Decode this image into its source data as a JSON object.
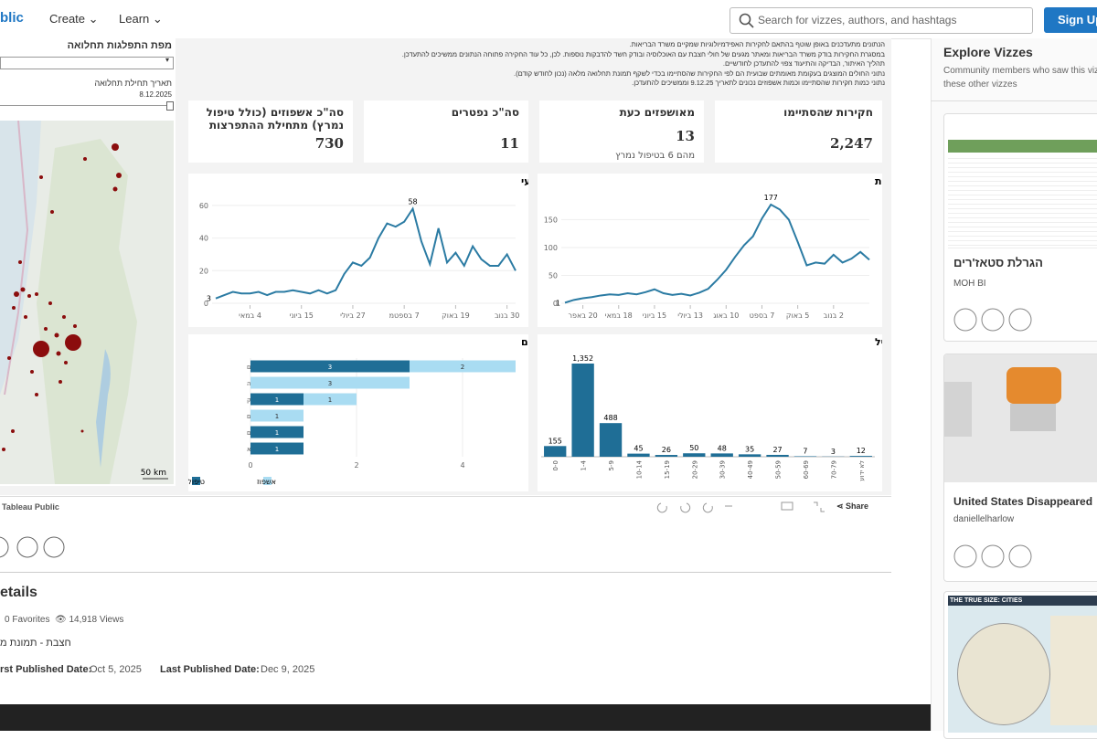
{
  "nav": {
    "logo": "blic",
    "create": "Create",
    "learn": "Learn",
    "search": "Search for vizzes, authors, and hashtags",
    "signup": "Sign Up"
  },
  "dashboard": {
    "map": {
      "title": "מפת התפלגות תחלואה",
      "date_label": "תאריך תחילת תחלואה",
      "date": "8.12.2025",
      "scale": "50 km"
    },
    "notes": [
      "הנתונים מתעדכנים באופן שוטף בהתאם לחקירות האפידמיולוגיות שמקיים משרד הבריאות.",
      "במסגרת החקירות בודק משרד הבריאות ומאתר מגעים של חולי חצבת עם האוכלוסיה ובודק חשד להדבקות נוספות. לכן, כל עוד החקירה פתוחה הנתונים ממשיכים להתעדכן.",
      "תהליך האיתור, הבדיקה והתיעוד צפוי להתעדכן לחודשיים.",
      "נתוני החולים המוצגים בעקומת מאומתים שבועית הם לפי החקירות שהסתיימו בכדי לשקף תמונת תחלואה מלאה (נכון לחודש קודם).",
      "נתוני כמות חקירות שהסתיימו וכמות אשפוזים נכונים לתאריך 9.12.25 וממשיכים להתעדכן."
    ],
    "kpis": [
      {
        "label": "חקירות שהסתיימו",
        "value": "2,247"
      },
      {
        "label": "מאושפזים כעת",
        "value": "13",
        "sub": "מהם 6 בטיפול נמרץ"
      },
      {
        "label": "סה\"כ נפטרים",
        "value": "11"
      },
      {
        "label": "סה\"כ אשפוזים (כולל טיפול נמרץ) מתחילת ההתפרצות",
        "value": "730"
      }
    ],
    "charts": [
      {
        "type": "line",
        "title": "אשפוזים חדשים בחתך שבועי",
        "color": "#2b7ba3",
        "ylim": [
          0,
          65
        ],
        "yticks": [
          0,
          20,
          40,
          60
        ],
        "categories": [
          null,
          null,
          null,
          null,
          "4 במאי",
          null,
          null,
          null,
          null,
          null,
          "15 ביוני",
          null,
          null,
          null,
          null,
          null,
          "27 ביולי",
          null,
          null,
          null,
          null,
          null,
          "7 בספטמ",
          null,
          null,
          null,
          null,
          null,
          "19 באוק",
          null,
          null,
          null,
          null,
          null,
          "30 בנוב",
          null
        ],
        "values": [
          3,
          5,
          7,
          6,
          6,
          7,
          5,
          7,
          7,
          8,
          7,
          6,
          8,
          6,
          8,
          18,
          25,
          23,
          28,
          40,
          49,
          47,
          50,
          58,
          38,
          24,
          46,
          25,
          31,
          23,
          35,
          27,
          23,
          23,
          30,
          20
        ]
      },
      {
        "type": "line",
        "title": "מאומתים ברמה שבועית",
        "color": "#2b7ba3",
        "ylim": [
          0,
          190
        ],
        "yticks": [
          0,
          50,
          100,
          150
        ],
        "categories": [
          null,
          null,
          "20 באפר",
          null,
          null,
          null,
          "18 במאי",
          null,
          null,
          null,
          "15 ביוני",
          null,
          null,
          null,
          "13 ביולי",
          null,
          null,
          null,
          "10 באוג",
          null,
          null,
          null,
          "7 בספט",
          null,
          null,
          null,
          "5 באוק",
          null,
          null,
          null,
          "2 בנוב",
          null,
          null,
          null,
          null
        ],
        "values": [
          1,
          6,
          9,
          11,
          14,
          16,
          15,
          18,
          16,
          20,
          25,
          18,
          15,
          17,
          14,
          19,
          26,
          42,
          60,
          83,
          104,
          120,
          152,
          177,
          168,
          150,
          110,
          68,
          73,
          71,
          87,
          73,
          80,
          92,
          78
        ]
      },
      {
        "type": "hbar",
        "title": "מאושפזים כעת בבתי החולים",
        "xlim": [
          0,
          5
        ],
        "xticks": [
          0,
          2,
          4
        ],
        "categories": [
          "הדסה עין כרם",
          "פוריה",
          "שערי צדק",
          "הדסה הר הצופים",
          "רמב\"ם",
          "שיבא"
        ],
        "series": [
          {
            "name": "טיפול נמרץ",
            "color": "#1f6e96",
            "values": [
              3,
              null,
              1,
              null,
              1,
              1
            ]
          },
          {
            "name": "אשפוז",
            "color": "#a9dcf2",
            "values": [
              2,
              3,
              1,
              1,
              null,
              null
            ]
          }
        ]
      },
      {
        "type": "bar",
        "title": "התפלגות מאומתים לפי גיל",
        "color": "#1f6e96",
        "categories": [
          "0-0",
          "1-4",
          "5-9",
          "10-14",
          "15-19",
          "20-29",
          "30-39",
          "40-49",
          "50-59",
          "60-69",
          "70-79",
          "לא ידוע"
        ],
        "values": [
          155,
          1352,
          488,
          45,
          26,
          50,
          48,
          35,
          27,
          7,
          3,
          12
        ],
        "value_labels": [
          "155",
          "1,352",
          "488",
          "45",
          "26",
          "50",
          "48",
          "35",
          "27",
          "7",
          "3",
          "12"
        ]
      }
    ]
  },
  "toolbar": {
    "brand": "Tableau Public",
    "share": "Share"
  },
  "details": {
    "title": "etails",
    "favorites": "0 Favorites",
    "views": "14,918 Views",
    "description": "חצבת - תמונת מ",
    "first_label": "rst Published Date:",
    "first_date": "Oct 5, 2025",
    "last_label": "Last Published Date:",
    "last_date": "Dec 9, 2025"
  },
  "sidebar": {
    "title": "Explore Vizzes",
    "subtitle": [
      "Community members who saw this viz",
      "these other vizzes"
    ],
    "cards": [
      {
        "title": "הגרלת סטאז'רים",
        "author": "MOH BI"
      },
      {
        "title": "United States Disappeared",
        "author": "daniellelharlow"
      },
      {
        "image_text": "THE TRUE SIZE: CITIES"
      }
    ]
  }
}
